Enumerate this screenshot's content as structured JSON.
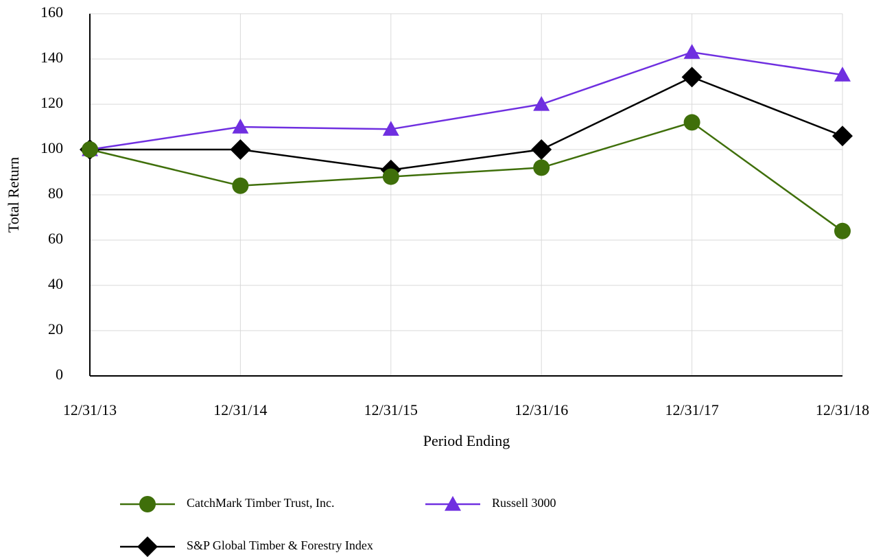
{
  "chart_data": {
    "type": "line",
    "x_label": "Period Ending",
    "y_label": "Total Return",
    "categories": [
      "12/31/13",
      "12/31/14",
      "12/31/15",
      "12/31/16",
      "12/31/17",
      "12/31/18"
    ],
    "series": [
      {
        "name": "CatchMark Timber Trust, Inc.",
        "color": "#3f6f0a",
        "marker": "circle",
        "values": [
          100,
          84,
          88,
          92,
          112,
          64
        ]
      },
      {
        "name": "Russell 3000",
        "color": "#6f2fe0",
        "marker": "triangle",
        "values": [
          100,
          110,
          109,
          120,
          143,
          133
        ]
      },
      {
        "name": "S&P Global Timber & Forestry Index",
        "color": "#000000",
        "marker": "diamond",
        "values": [
          100,
          100,
          91,
          100,
          132,
          106
        ]
      }
    ],
    "ylim": [
      0,
      160
    ],
    "yticks": [
      0,
      20,
      40,
      60,
      80,
      100,
      120,
      140,
      160
    ],
    "grid": true
  }
}
